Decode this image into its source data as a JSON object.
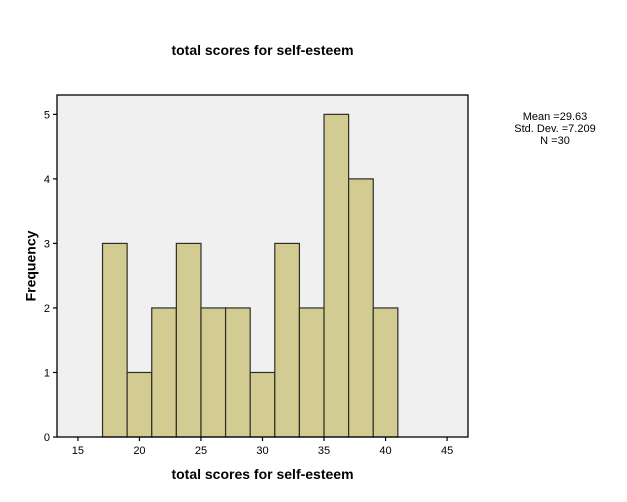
{
  "chart_data": {
    "type": "bar",
    "subtype": "histogram",
    "title": "total scores for self-esteem",
    "xlabel": "total scores for self-esteem",
    "ylabel": "Frequency",
    "bin_edges": [
      17,
      19,
      21,
      23,
      25,
      27,
      29,
      31,
      33,
      35,
      37,
      39,
      41
    ],
    "values": [
      3,
      1,
      2,
      3,
      2,
      2,
      1,
      3,
      2,
      5,
      4,
      2
    ],
    "xticks": [
      15,
      20,
      25,
      30,
      35,
      40,
      45
    ],
    "yticks": [
      0,
      1,
      2,
      3,
      4,
      5
    ],
    "xlim": [
      13.3,
      46.7
    ],
    "ylim": [
      0,
      5.3
    ],
    "grid": false,
    "legend_position": "none",
    "stats_lines": [
      "Mean =29.63",
      "Std. Dev. =7.209",
      "N =30"
    ],
    "stats": {
      "mean": 29.63,
      "std_dev": 7.209,
      "n": 30
    },
    "colors": {
      "bar_fill": "#d3cc92",
      "bar_stroke": "#2e2e26",
      "plot_bg": "#f0f0f0",
      "axis": "#000000",
      "figure_bg": "#ffffff"
    }
  }
}
